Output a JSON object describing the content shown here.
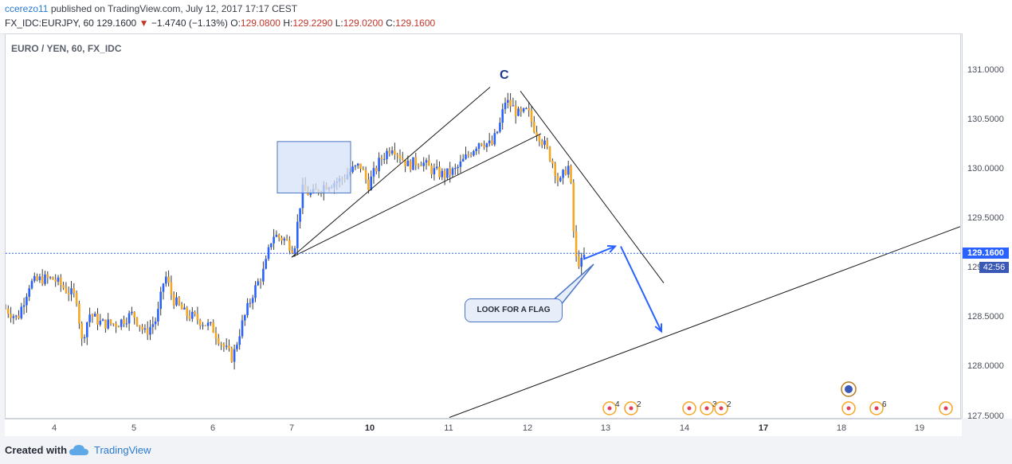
{
  "header": {
    "author": "ccerezo11",
    "published_text": "published on TradingView.com, July 12, 2017 17:17 CEST",
    "symbol": "FX_IDC:EURJPY, 60",
    "price": "129.1600",
    "arrow": "▼",
    "change": "−1.4740 (−1.13%)",
    "o_label": "O:",
    "o_value": "129.0800",
    "h_label": "H:",
    "h_value": "129.2290",
    "l_label": "L:",
    "l_value": "129.0200",
    "c_label": "C:",
    "c_value": "129.1600"
  },
  "chart_label": "EURO / YEN, 60, FX_IDC",
  "price_tag": "129.1600",
  "time_tag": "42:56",
  "callout_text": "LOOK FOR A FLAG",
  "wave_label": "C",
  "footer": {
    "created_with": "Created with",
    "brand": "TradingView"
  },
  "colors": {
    "up": "#2962ff",
    "down": "#f5a623",
    "line": "#1a1a1a",
    "annotation": "#2962ff",
    "box": "#d6e2f7"
  },
  "chart_data": {
    "type": "candlestick",
    "title": "EURO / YEN, 60, FX_IDC",
    "y_ticks": [
      "127.5000",
      "128.0000",
      "128.5000",
      "129.0000",
      "129.5000",
      "130.0000",
      "130.5000",
      "131.0000"
    ],
    "ylim": [
      127.5,
      131.15
    ],
    "x_ticks": [
      {
        "label": "4",
        "bold": false,
        "bar": 62
      },
      {
        "label": "5",
        "bold": false,
        "bar": 162
      },
      {
        "label": "6",
        "bold": false,
        "bar": 261
      },
      {
        "label": "7",
        "bold": false,
        "bar": 360
      },
      {
        "label": "10",
        "bold": true,
        "bar": 458
      },
      {
        "label": "11",
        "bold": false,
        "bar": 557
      },
      {
        "label": "12",
        "bold": false,
        "bar": 656
      },
      {
        "label": "13",
        "bold": false,
        "bar": 754
      },
      {
        "label": "14",
        "bold": false,
        "bar": 853
      },
      {
        "label": "17",
        "bold": true,
        "bar": 952
      },
      {
        "label": "18",
        "bold": false,
        "bar": 1050
      },
      {
        "label": "19",
        "bold": false,
        "bar": 1148
      }
    ],
    "current_price": 129.16,
    "close_path": [
      [
        0,
        128.6
      ],
      [
        15,
        128.5
      ],
      [
        30,
        128.85
      ],
      [
        45,
        128.9
      ],
      [
        60,
        128.9
      ],
      [
        75,
        128.8
      ],
      [
        90,
        128.7
      ],
      [
        95,
        128.25
      ],
      [
        105,
        128.55
      ],
      [
        120,
        128.45
      ],
      [
        140,
        128.45
      ],
      [
        160,
        128.55
      ],
      [
        175,
        128.35
      ],
      [
        190,
        128.5
      ],
      [
        200,
        128.95
      ],
      [
        210,
        128.7
      ],
      [
        225,
        128.55
      ],
      [
        240,
        128.5
      ],
      [
        260,
        128.4
      ],
      [
        275,
        128.2
      ],
      [
        285,
        128.1
      ],
      [
        295,
        128.4
      ],
      [
        310,
        128.75
      ],
      [
        325,
        129.0
      ],
      [
        335,
        129.35
      ],
      [
        350,
        129.3
      ],
      [
        362,
        129.2
      ],
      [
        372,
        129.8
      ],
      [
        385,
        129.75
      ],
      [
        400,
        129.85
      ],
      [
        420,
        129.9
      ],
      [
        435,
        130.0
      ],
      [
        445,
        130.05
      ],
      [
        455,
        129.85
      ],
      [
        470,
        130.1
      ],
      [
        485,
        130.25
      ],
      [
        495,
        130.15
      ],
      [
        505,
        130.05
      ],
      [
        520,
        130.1
      ],
      [
        535,
        130.0
      ],
      [
        550,
        129.95
      ],
      [
        565,
        130.0
      ],
      [
        580,
        130.15
      ],
      [
        595,
        130.3
      ],
      [
        610,
        130.25
      ],
      [
        620,
        130.45
      ],
      [
        627,
        130.7
      ],
      [
        635,
        130.65
      ],
      [
        645,
        130.55
      ],
      [
        655,
        130.6
      ],
      [
        662,
        130.45
      ],
      [
        670,
        130.35
      ],
      [
        680,
        130.2
      ],
      [
        688,
        130.05
      ],
      [
        695,
        129.85
      ],
      [
        702,
        130.0
      ],
      [
        708,
        130.05
      ],
      [
        712,
        129.45
      ],
      [
        716,
        129.1
      ],
      [
        722,
        129.05
      ],
      [
        728,
        129.16
      ]
    ],
    "seed": 7,
    "trendlines": [
      {
        "from": [
          359,
          129.12
        ],
        "to": [
          608,
          130.84
        ]
      },
      {
        "from": [
          359,
          129.12
        ],
        "to": [
          672,
          130.37
        ]
      },
      {
        "from": [
          646,
          130.8
        ],
        "to": [
          826,
          128.86
        ]
      },
      {
        "from": [
          557,
          127.5
        ],
        "to": [
          1198,
          129.43
        ]
      }
    ],
    "rectangle": {
      "x0": 341,
      "x1": 433,
      "y0": 129.77,
      "y1": 130.29
    },
    "flag_arrows": [
      {
        "from": [
          725,
          129.1
        ],
        "to": [
          765,
          129.23
        ]
      },
      {
        "from": [
          772,
          129.23
        ],
        "to": [
          823,
          128.37
        ]
      }
    ],
    "callout_pointer": {
      "from": [
        738,
        129.05
      ],
      "to": [
        690,
        128.65
      ]
    },
    "event_markers": [
      {
        "bar": 758,
        "count": "4"
      },
      {
        "bar": 785,
        "count": "2"
      },
      {
        "bar": 858,
        "count": ""
      },
      {
        "bar": 880,
        "count": "3"
      },
      {
        "bar": 898,
        "count": "2"
      },
      {
        "bar": 1058,
        "count": ""
      },
      {
        "bar": 1093,
        "count": "6"
      },
      {
        "bar": 1180,
        "count": ""
      }
    ]
  }
}
